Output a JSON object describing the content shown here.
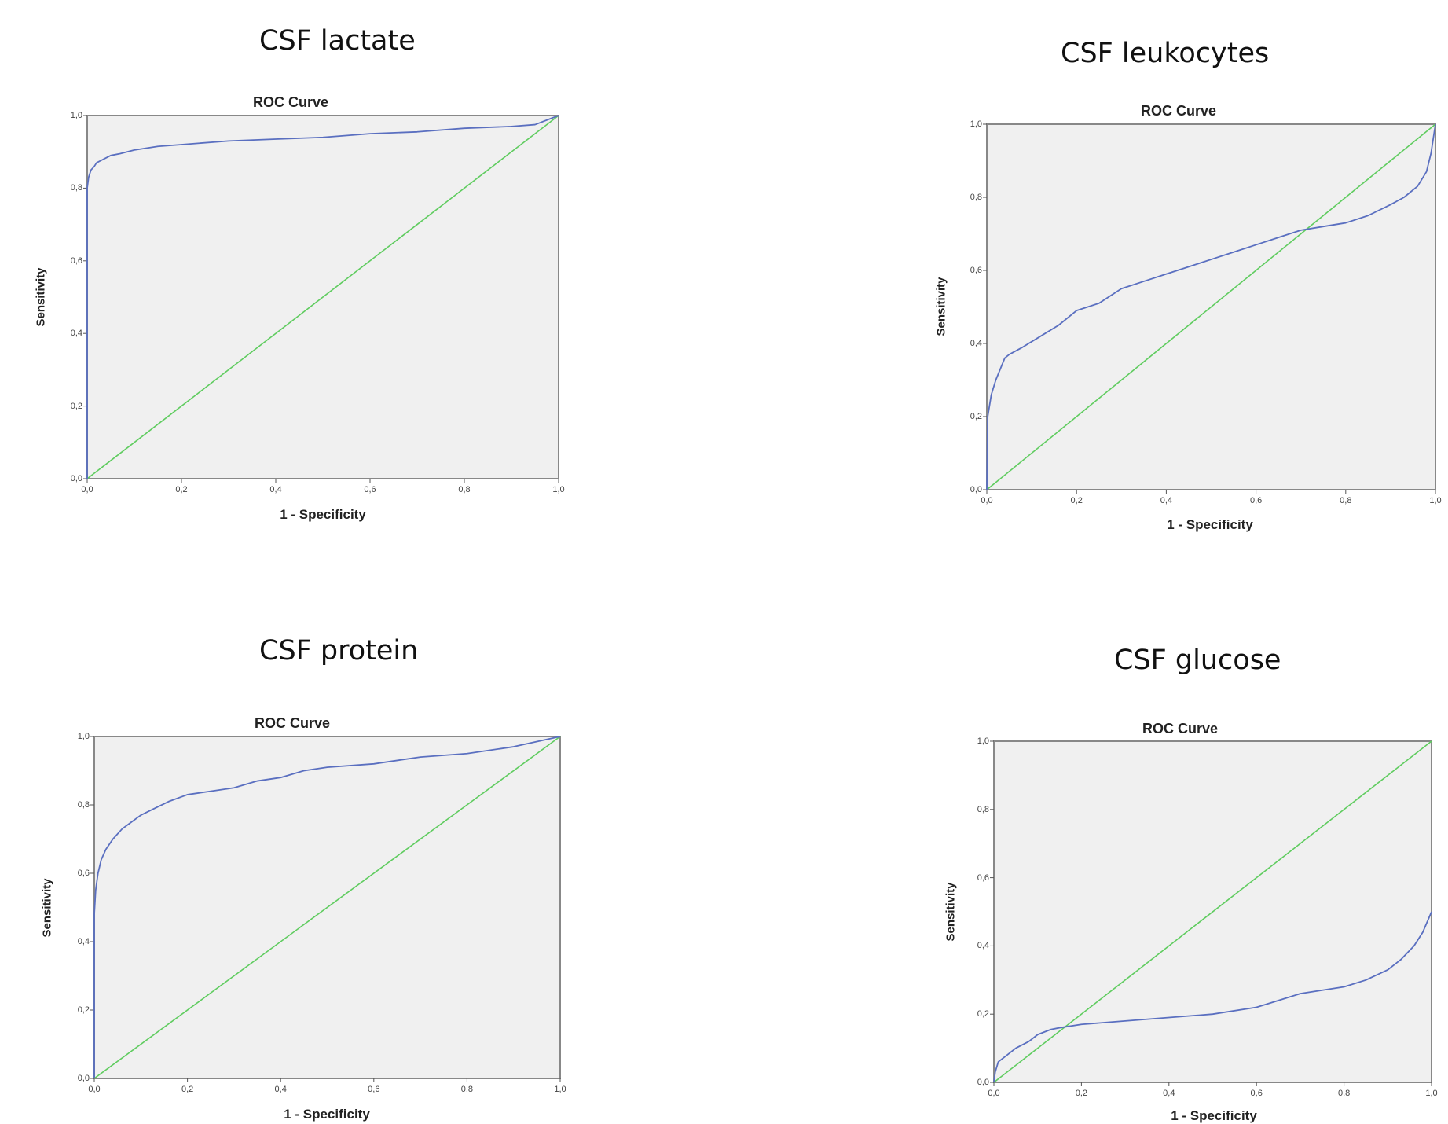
{
  "chart_data": [
    {
      "type": "line",
      "heading": "CSF lactate",
      "title": "ROC Curve",
      "xlabel": "1 - Specificity",
      "ylabel": "Sensitivity",
      "xlim": [
        0,
        1
      ],
      "ylim": [
        0,
        1
      ],
      "xticks": [
        "0,0",
        "0,2",
        "0,4",
        "0,6",
        "0,8",
        "1,0"
      ],
      "yticks": [
        "0,0",
        "0,2",
        "0,4",
        "0,6",
        "0,8",
        "1,0"
      ],
      "grid": false,
      "colors": {
        "roc": "#5a6fc0",
        "reference": "#5fcc5f",
        "plot_bg": "#f0f0f0",
        "frame": "#888888"
      },
      "series": [
        {
          "x": [
            0,
            0,
            0.003,
            0.008,
            0.015,
            0.02,
            0.035,
            0.05,
            0.07,
            0.1,
            0.15,
            0.2,
            0.3,
            0.4,
            0.5,
            0.6,
            0.7,
            0.8,
            0.9,
            0.95,
            1.0
          ],
          "y": [
            0,
            0.8,
            0.83,
            0.85,
            0.86,
            0.87,
            0.88,
            0.89,
            0.895,
            0.905,
            0.915,
            0.92,
            0.93,
            0.935,
            0.94,
            0.95,
            0.955,
            0.965,
            0.97,
            0.975,
            1.0
          ]
        },
        {
          "x": [
            0,
            1
          ],
          "y": [
            0,
            1
          ]
        }
      ]
    },
    {
      "type": "line",
      "heading": "CSF leukocytes",
      "title": "ROC Curve",
      "xlabel": "1 - Specificity",
      "ylabel": "Sensitivity",
      "xlim": [
        0,
        1
      ],
      "ylim": [
        0,
        1
      ],
      "xticks": [
        "0,0",
        "0,2",
        "0,4",
        "0,6",
        "0,8",
        "1,0"
      ],
      "yticks": [
        "0,0",
        "0,2",
        "0,4",
        "0,6",
        "0,8",
        "1,0"
      ],
      "grid": false,
      "colors": {
        "roc": "#5a6fc0",
        "reference": "#5fcc5f",
        "plot_bg": "#f0f0f0",
        "frame": "#888888"
      },
      "series": [
        {
          "x": [
            0,
            0.002,
            0.01,
            0.02,
            0.03,
            0.04,
            0.05,
            0.08,
            0.12,
            0.16,
            0.2,
            0.25,
            0.3,
            0.35,
            0.4,
            0.45,
            0.5,
            0.55,
            0.6,
            0.65,
            0.7,
            0.75,
            0.8,
            0.85,
            0.9,
            0.93,
            0.96,
            0.98,
            0.99,
            1.0
          ],
          "y": [
            0,
            0.2,
            0.26,
            0.3,
            0.33,
            0.36,
            0.37,
            0.39,
            0.42,
            0.45,
            0.49,
            0.51,
            0.55,
            0.57,
            0.59,
            0.61,
            0.63,
            0.65,
            0.67,
            0.69,
            0.71,
            0.72,
            0.73,
            0.75,
            0.78,
            0.8,
            0.83,
            0.87,
            0.92,
            1.0
          ]
        },
        {
          "x": [
            0,
            1
          ],
          "y": [
            0,
            1
          ]
        }
      ]
    },
    {
      "type": "line",
      "heading": "CSF protein",
      "title": "ROC Curve",
      "xlabel": "1 - Specificity",
      "ylabel": "Sensitivity",
      "xlim": [
        0,
        1
      ],
      "ylim": [
        0,
        1
      ],
      "xticks": [
        "0,0",
        "0,2",
        "0,4",
        "0,6",
        "0,8",
        "1,0"
      ],
      "yticks": [
        "0,0",
        "0,2",
        "0,4",
        "0,6",
        "0,8",
        "1,0"
      ],
      "grid": false,
      "colors": {
        "roc": "#5a6fc0",
        "reference": "#5fcc5f",
        "plot_bg": "#f0f0f0",
        "frame": "#888888"
      },
      "series": [
        {
          "x": [
            0,
            0,
            0.003,
            0.008,
            0.015,
            0.025,
            0.04,
            0.06,
            0.08,
            0.1,
            0.13,
            0.16,
            0.2,
            0.25,
            0.3,
            0.35,
            0.4,
            0.45,
            0.5,
            0.6,
            0.7,
            0.8,
            0.9,
            1.0
          ],
          "y": [
            0,
            0.48,
            0.55,
            0.6,
            0.64,
            0.67,
            0.7,
            0.73,
            0.75,
            0.77,
            0.79,
            0.81,
            0.83,
            0.84,
            0.85,
            0.87,
            0.88,
            0.9,
            0.91,
            0.92,
            0.94,
            0.95,
            0.97,
            1.0
          ]
        },
        {
          "x": [
            0,
            1
          ],
          "y": [
            0,
            1
          ]
        }
      ]
    },
    {
      "type": "line",
      "heading": "CSF glucose",
      "title": "ROC Curve",
      "xlabel": "1 - Specificity",
      "ylabel": "Sensitivity",
      "xlim": [
        0,
        1
      ],
      "ylim": [
        0,
        1
      ],
      "xticks": [
        "0,0",
        "0,2",
        "0,4",
        "0,6",
        "0,8",
        "1,0"
      ],
      "yticks": [
        "0,0",
        "0,2",
        "0,4",
        "0,6",
        "0,8",
        "1,0"
      ],
      "grid": false,
      "colors": {
        "roc": "#5a6fc0",
        "reference": "#5fcc5f",
        "plot_bg": "#f0f0f0",
        "frame": "#888888"
      },
      "series": [
        {
          "x": [
            0,
            0.003,
            0.01,
            0.03,
            0.05,
            0.08,
            0.1,
            0.13,
            0.15,
            0.2,
            0.3,
            0.4,
            0.5,
            0.6,
            0.65,
            0.7,
            0.8,
            0.85,
            0.9,
            0.93,
            0.96,
            0.98,
            1.0
          ],
          "y": [
            0,
            0.03,
            0.06,
            0.08,
            0.1,
            0.12,
            0.14,
            0.155,
            0.16,
            0.17,
            0.18,
            0.19,
            0.2,
            0.22,
            0.24,
            0.26,
            0.28,
            0.3,
            0.33,
            0.36,
            0.4,
            0.44,
            0.5
          ]
        },
        {
          "x": [
            0,
            1
          ],
          "y": [
            0,
            1
          ]
        }
      ]
    }
  ]
}
